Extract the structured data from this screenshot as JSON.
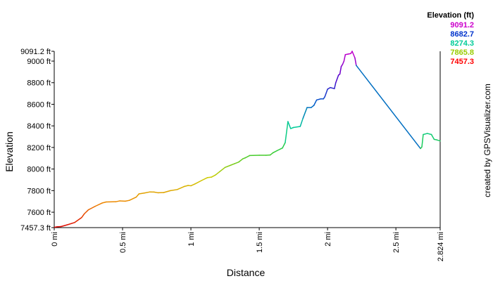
{
  "chart_data": {
    "type": "line",
    "title": "",
    "xlabel": "Distance",
    "ylabel": "Elevation",
    "xlim": [
      0,
      2.824
    ],
    "ylim": [
      7457.3,
      9091.2
    ],
    "grid": false,
    "x_ticks": [
      {
        "value": 0,
        "label": "0 mi"
      },
      {
        "value": 0.5,
        "label": "0.5 mi"
      },
      {
        "value": 1,
        "label": "1 mi"
      },
      {
        "value": 1.5,
        "label": "1.5 mi"
      },
      {
        "value": 2,
        "label": "2 mi"
      },
      {
        "value": 2.5,
        "label": "2.5 mi"
      },
      {
        "value": 2.824,
        "label": "2.824 mi"
      }
    ],
    "y_ticks": [
      {
        "value": 7457.3,
        "label": "7457.3 ft"
      },
      {
        "value": 7600,
        "label": "7600 ft"
      },
      {
        "value": 7800,
        "label": "7800 ft"
      },
      {
        "value": 8000,
        "label": "8000 ft"
      },
      {
        "value": 8200,
        "label": "8200 ft"
      },
      {
        "value": 8400,
        "label": "8400 ft"
      },
      {
        "value": 8600,
        "label": "8600 ft"
      },
      {
        "value": 8800,
        "label": "8800 ft"
      },
      {
        "value": 9000,
        "label": "9000 ft"
      },
      {
        "value": 9091.2,
        "label": "9091.2 ft"
      }
    ],
    "legend": {
      "title": "Elevation (ft)",
      "placement": "top-right",
      "entries": [
        {
          "label": "9091.2",
          "color": "#cc00cc"
        },
        {
          "label": "8682.7",
          "color": "#0033cc"
        },
        {
          "label": "8274.3",
          "color": "#00cc99"
        },
        {
          "label": "7865.8",
          "color": "#99cc00"
        },
        {
          "label": "7457.3",
          "color": "#ff0000"
        }
      ]
    },
    "color_scale": {
      "min": 7457.3,
      "max": 9091.2,
      "stops": [
        "#dd0000",
        "#ee8800",
        "#cccc00",
        "#33cc33",
        "#00cc99",
        "#0055cc",
        "#5500cc",
        "#cc00cc"
      ]
    },
    "series": [
      {
        "x": [
          0,
          0.02,
          0.05,
          0.1,
          0.15,
          0.2,
          0.22,
          0.25,
          0.3,
          0.35,
          0.38,
          0.45,
          0.48,
          0.52,
          0.55,
          0.6,
          0.62,
          0.66,
          0.7,
          0.73,
          0.76,
          0.8,
          0.85,
          0.9,
          0.95,
          0.98,
          1.0,
          1.03,
          1.08,
          1.12,
          1.15,
          1.18,
          1.21,
          1.25,
          1.29,
          1.32,
          1.35,
          1.38,
          1.4,
          1.43,
          1.5,
          1.55,
          1.58,
          1.6,
          1.63,
          1.67,
          1.69,
          1.71,
          1.73,
          1.75,
          1.8,
          1.82,
          1.85,
          1.88,
          1.9,
          1.92,
          1.95,
          1.97,
          1.98,
          2.0,
          2.02,
          2.05,
          2.06,
          2.08,
          2.09,
          2.1,
          2.11,
          2.12,
          2.13,
          2.15,
          2.17,
          2.18,
          2.2,
          2.21,
          2.68,
          2.69,
          2.7,
          2.73,
          2.76,
          2.78,
          2.8,
          2.824
        ],
        "y": [
          7460,
          7465,
          7467,
          7485,
          7505,
          7550,
          7585,
          7622,
          7655,
          7685,
          7695,
          7697,
          7705,
          7702,
          7710,
          7740,
          7770,
          7778,
          7788,
          7787,
          7780,
          7782,
          7800,
          7810,
          7838,
          7848,
          7845,
          7862,
          7895,
          7920,
          7925,
          7945,
          7975,
          8015,
          8035,
          8050,
          8065,
          8095,
          8105,
          8125,
          8128,
          8128,
          8130,
          8150,
          8170,
          8195,
          8245,
          8440,
          8375,
          8385,
          8395,
          8470,
          8570,
          8570,
          8590,
          8640,
          8650,
          8650,
          8670,
          8740,
          8755,
          8745,
          8800,
          8870,
          8880,
          8950,
          8970,
          9000,
          9060,
          9065,
          9070,
          9091.2,
          9030,
          8960,
          8190,
          8205,
          8320,
          8330,
          8320,
          8275,
          8270,
          8260
        ]
      }
    ],
    "credit": "created by GPSVisualizer.com"
  }
}
